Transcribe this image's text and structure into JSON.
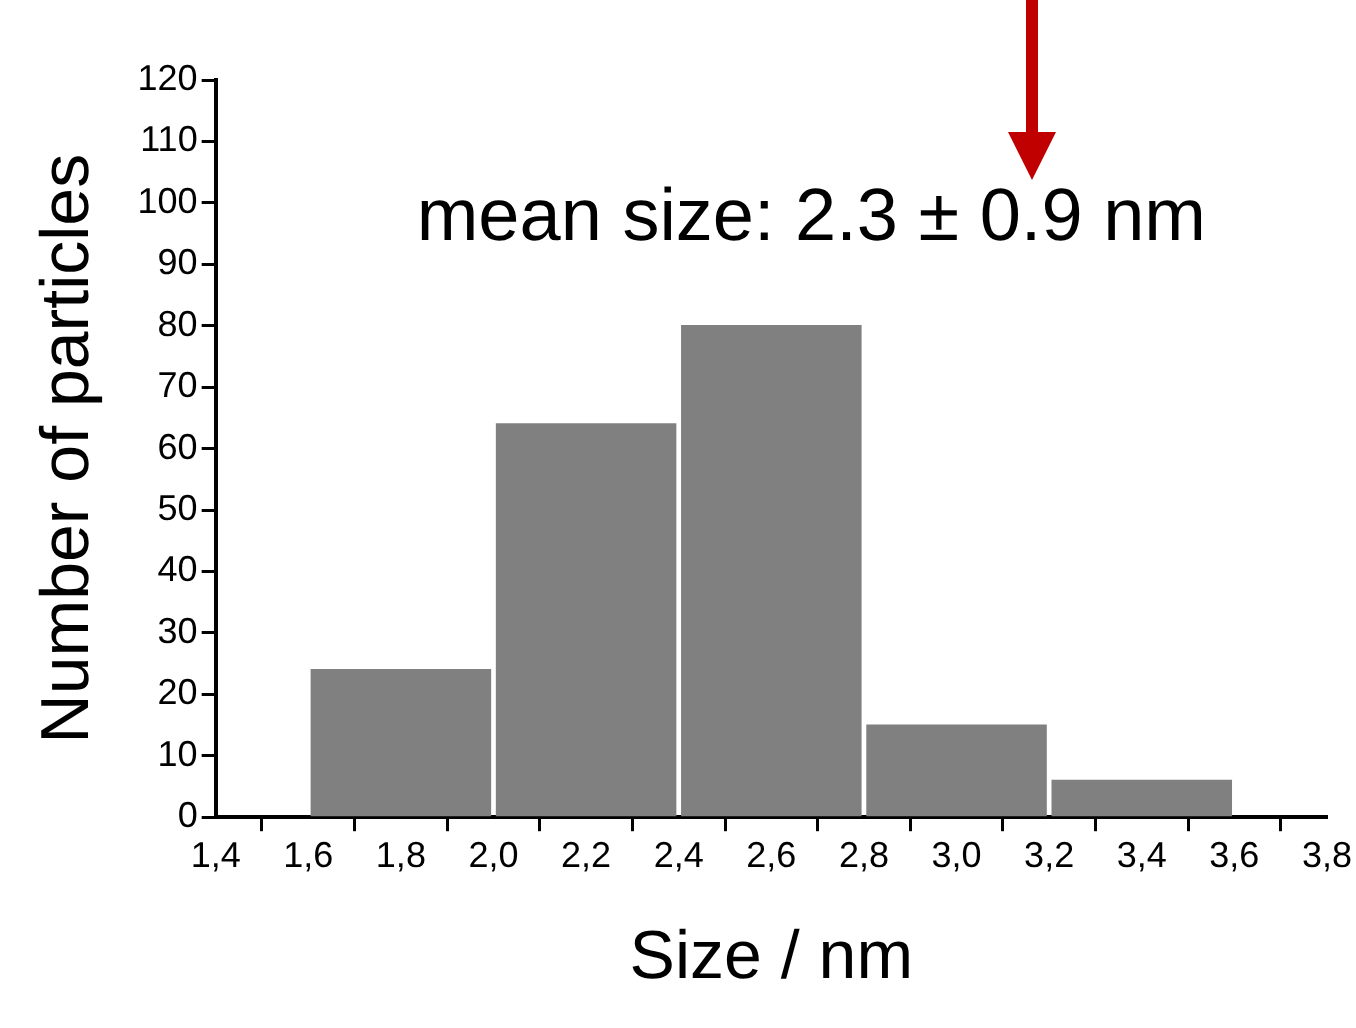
{
  "chart_data": {
    "type": "histogram",
    "bins": [
      1.6,
      2.0,
      2.4,
      2.8,
      3.2,
      3.6
    ],
    "values": [
      24,
      64,
      80,
      15,
      6
    ],
    "color": "#808080",
    "xlabel": "Size / nm",
    "ylabel": "Number of particles",
    "xlim": [
      1.4,
      3.8
    ],
    "xticks": [
      {
        "value": 1.4,
        "label": "1,4"
      },
      {
        "value": 1.6,
        "label": "1,6"
      },
      {
        "value": 1.8,
        "label": "1,8"
      },
      {
        "value": 2.0,
        "label": "2,0"
      },
      {
        "value": 2.2,
        "label": "2,2"
      },
      {
        "value": 2.4,
        "label": "2,4"
      },
      {
        "value": 2.6,
        "label": "2,6"
      },
      {
        "value": 2.8,
        "label": "2,8"
      },
      {
        "value": 3.0,
        "label": "3,0"
      },
      {
        "value": 3.2,
        "label": "3,2"
      },
      {
        "value": 3.4,
        "label": "3,4"
      },
      {
        "value": 3.6,
        "label": "3,6"
      },
      {
        "value": 3.8,
        "label": "3,8"
      }
    ],
    "ylim": [
      0,
      120
    ],
    "yticks": [
      0,
      10,
      20,
      30,
      40,
      50,
      60,
      70,
      80,
      90,
      100,
      110,
      120
    ],
    "annotations": [
      "mean size: 2.3 ± 0.9 nm"
    ],
    "grid": false,
    "legend": false
  }
}
